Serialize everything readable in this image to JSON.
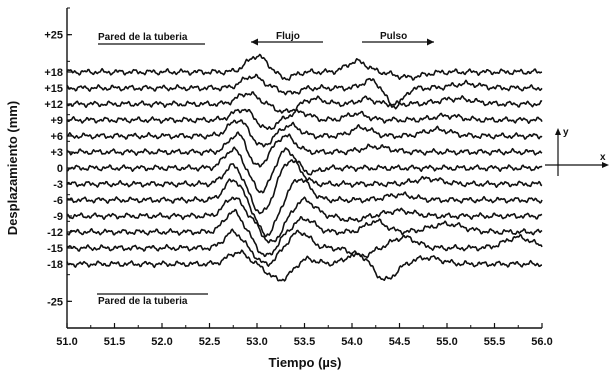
{
  "chart_data": {
    "type": "line",
    "title": "",
    "xlabel": "Tiempo (µs)",
    "ylabel": "Desplazamiento (mm)",
    "xlim": [
      51.0,
      56.0
    ],
    "ylim": [
      -30,
      30
    ],
    "x_ticks": [
      "51.0",
      "51.5",
      "52.0",
      "52.5",
      "53.0",
      "53.5",
      "54.0",
      "54.5",
      "55.0",
      "55.5",
      "56.0"
    ],
    "y_ticks": [
      {
        "label": "+25",
        "value": 25
      },
      {
        "label": "+18",
        "value": 18
      },
      {
        "label": "+15",
        "value": 15
      },
      {
        "label": "+12",
        "value": 12
      },
      {
        "label": "+9",
        "value": 9
      },
      {
        "label": "+6",
        "value": 6
      },
      {
        "label": "+3",
        "value": 3
      },
      {
        "label": "0",
        "value": 0
      },
      {
        "label": "-3",
        "value": -3
      },
      {
        "label": "-6",
        "value": -6
      },
      {
        "label": "-9",
        "value": -9
      },
      {
        "label": "-12",
        "value": -12
      },
      {
        "label": "-15",
        "value": -15
      },
      {
        "label": "-18",
        "value": -18
      },
      {
        "label": "-25",
        "value": -25
      }
    ],
    "grid": false,
    "annotations": {
      "wall_top": "Pared de la tuberia",
      "wall_bottom": "Pared de la tuberia",
      "flow": "Flujo",
      "pulse": "Pulso"
    },
    "inset_axes": {
      "y": "y",
      "x": "x"
    },
    "series": [
      {
        "offset": 18,
        "features": [
          [
            53.0,
            3.0,
            0.15
          ],
          [
            53.3,
            -1.2,
            0.12
          ],
          [
            54.05,
            2.0,
            0.15
          ],
          [
            54.6,
            -1.0,
            0.2
          ]
        ]
      },
      {
        "offset": 15,
        "features": [
          [
            52.95,
            2.2,
            0.15
          ],
          [
            53.35,
            -1.0,
            0.12
          ],
          [
            54.2,
            1.5,
            0.12
          ],
          [
            54.45,
            -3.5,
            0.12
          ],
          [
            55.2,
            0.8,
            0.2
          ]
        ]
      },
      {
        "offset": 12,
        "features": [
          [
            52.9,
            2.0,
            0.15
          ],
          [
            53.3,
            -1.5,
            0.15
          ],
          [
            53.6,
            1.0,
            0.15
          ],
          [
            54.15,
            1.0,
            0.12
          ],
          [
            55.1,
            1.0,
            0.25
          ]
        ]
      },
      {
        "offset": 9,
        "features": [
          [
            52.85,
            2.0,
            0.15
          ],
          [
            53.1,
            -1.8,
            0.12
          ],
          [
            53.45,
            1.5,
            0.15
          ],
          [
            54.05,
            1.2,
            0.15
          ],
          [
            55.0,
            0.8,
            0.2
          ]
        ]
      },
      {
        "offset": 6,
        "features": [
          [
            52.8,
            3.0,
            0.14
          ],
          [
            53.05,
            -2.0,
            0.12
          ],
          [
            53.35,
            2.0,
            0.14
          ],
          [
            54.1,
            1.6,
            0.15
          ],
          [
            54.9,
            1.2,
            0.2
          ]
        ]
      },
      {
        "offset": 3,
        "features": [
          [
            52.8,
            3.5,
            0.13
          ],
          [
            53.0,
            -3.0,
            0.12
          ],
          [
            53.3,
            3.0,
            0.14
          ],
          [
            54.25,
            1.0,
            0.2
          ]
        ]
      },
      {
        "offset": 0,
        "features": [
          [
            52.75,
            3.5,
            0.13
          ],
          [
            53.05,
            -4.5,
            0.14
          ],
          [
            53.3,
            3.5,
            0.14
          ],
          [
            53.55,
            -1.0,
            0.12
          ]
        ]
      },
      {
        "offset": -3,
        "features": [
          [
            52.75,
            3.5,
            0.13
          ],
          [
            53.05,
            -5.5,
            0.15
          ],
          [
            53.35,
            4.5,
            0.15
          ],
          [
            54.8,
            1.0,
            0.2
          ]
        ]
      },
      {
        "offset": -6,
        "features": [
          [
            52.75,
            3.8,
            0.13
          ],
          [
            53.1,
            -6.5,
            0.15
          ],
          [
            53.45,
            4.0,
            0.15
          ],
          [
            54.5,
            1.0,
            0.2
          ]
        ]
      },
      {
        "offset": -9,
        "features": [
          [
            52.75,
            3.5,
            0.13
          ],
          [
            53.15,
            -5.0,
            0.15
          ],
          [
            53.5,
            3.0,
            0.15
          ],
          [
            54.0,
            -0.8,
            0.15
          ],
          [
            54.5,
            1.0,
            0.2
          ]
        ]
      },
      {
        "offset": -12,
        "features": [
          [
            52.75,
            3.8,
            0.13
          ],
          [
            53.1,
            -4.5,
            0.15
          ],
          [
            53.5,
            2.5,
            0.15
          ],
          [
            54.25,
            2.0,
            0.15
          ],
          [
            55.0,
            1.5,
            0.25
          ]
        ]
      },
      {
        "offset": -15,
        "features": [
          [
            52.75,
            3.0,
            0.13
          ],
          [
            53.1,
            -3.0,
            0.15
          ],
          [
            53.45,
            3.0,
            0.15
          ],
          [
            54.1,
            -1.5,
            0.15
          ],
          [
            54.55,
            2.0,
            0.18
          ],
          [
            55.75,
            2.0,
            0.2
          ]
        ]
      },
      {
        "offset": -18,
        "features": [
          [
            52.8,
            2.2,
            0.15
          ],
          [
            53.25,
            -3.0,
            0.18
          ],
          [
            53.5,
            1.2,
            0.15
          ],
          [
            54.05,
            2.0,
            0.15
          ],
          [
            54.35,
            -3.0,
            0.15
          ],
          [
            54.8,
            1.2,
            0.2
          ]
        ]
      }
    ]
  }
}
